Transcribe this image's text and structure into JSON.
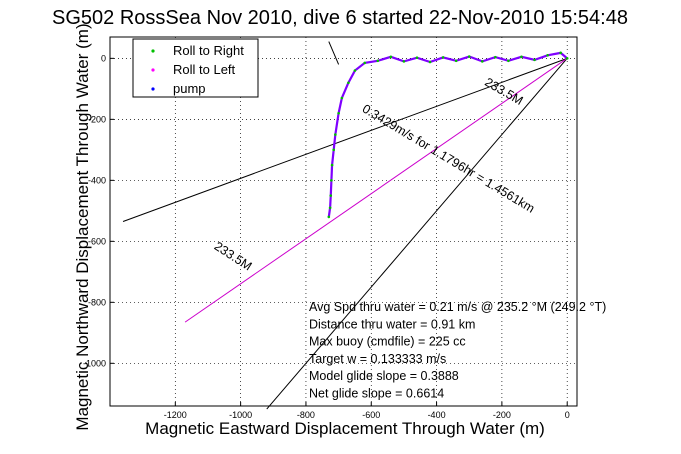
{
  "chart_data": {
    "type": "line",
    "title": "SG502 RossSea Nov 2010, dive 6 started 22-Nov-2010 15:54:48",
    "xlabel": "Magnetic Eastward Displacement Through Water (m)",
    "ylabel": "Magnetic Northward Displacement Through Water (m)",
    "xlim": [
      -1400,
      30
    ],
    "ylim": [
      -1140,
      70
    ],
    "xticks": [
      -1200,
      -1000,
      -800,
      -600,
      -400,
      -200,
      0
    ],
    "yticks": [
      0,
      -200,
      -400,
      -600,
      -800,
      -1000
    ],
    "grid": true,
    "legend_position": "top-left",
    "legend": [
      {
        "label": "Roll to Right",
        "color": "#00bf00"
      },
      {
        "label": "Roll to Left",
        "color": "#ff00ff"
      },
      {
        "label": "pump",
        "color": "#0000ff"
      }
    ],
    "series": [
      {
        "name": "Roll to Right",
        "color": "#00bf00",
        "x": [
          0,
          -20,
          -60,
          -100,
          -140,
          -180,
          -220,
          -260,
          -300,
          -340,
          -380,
          -420,
          -460,
          -500,
          -540,
          -580,
          -620,
          -650,
          -670,
          -690,
          -700,
          -710,
          -715,
          -720,
          -722,
          -724,
          -726,
          -730
        ],
        "y": [
          0,
          18,
          10,
          -5,
          5,
          -8,
          4,
          -10,
          6,
          -8,
          3,
          -12,
          2,
          -10,
          5,
          -8,
          -15,
          -40,
          -80,
          -130,
          -180,
          -250,
          -300,
          -350,
          -400,
          -450,
          -490,
          -520
        ]
      }
    ],
    "lines": [
      {
        "x": [
          0,
          -1360
        ],
        "y": [
          0,
          -535
        ]
      },
      {
        "x": [
          0,
          -920
        ],
        "y": [
          0,
          -1150
        ]
      },
      {
        "x": [
          0,
          -1170
        ],
        "y": [
          0,
          -865
        ]
      },
      {
        "x": [
          -730,
          -700
        ],
        "y": [
          55,
          -20
        ]
      }
    ],
    "annotations": [
      {
        "text": "233.5M",
        "x": -200,
        "y": -120,
        "rotation": 30
      },
      {
        "text": "0.3429m/s for 1.1796hr = 1.4561km",
        "x": -370,
        "y": -340,
        "rotation": 31
      },
      {
        "text": "233.5M",
        "x": -1030,
        "y": -660,
        "rotation": 33
      }
    ],
    "stats": [
      "Avg Spd thru water =  0.21 m/s @ 235.2   °M (249.2 °T)",
      "Distance thru water =  0.91 km",
      "Max buoy (cmdfile) = 225 cc",
      "Target w = 0.133333 m/s",
      "Model glide slope = 0.3888",
      "Net glide slope = 0.6614"
    ]
  }
}
